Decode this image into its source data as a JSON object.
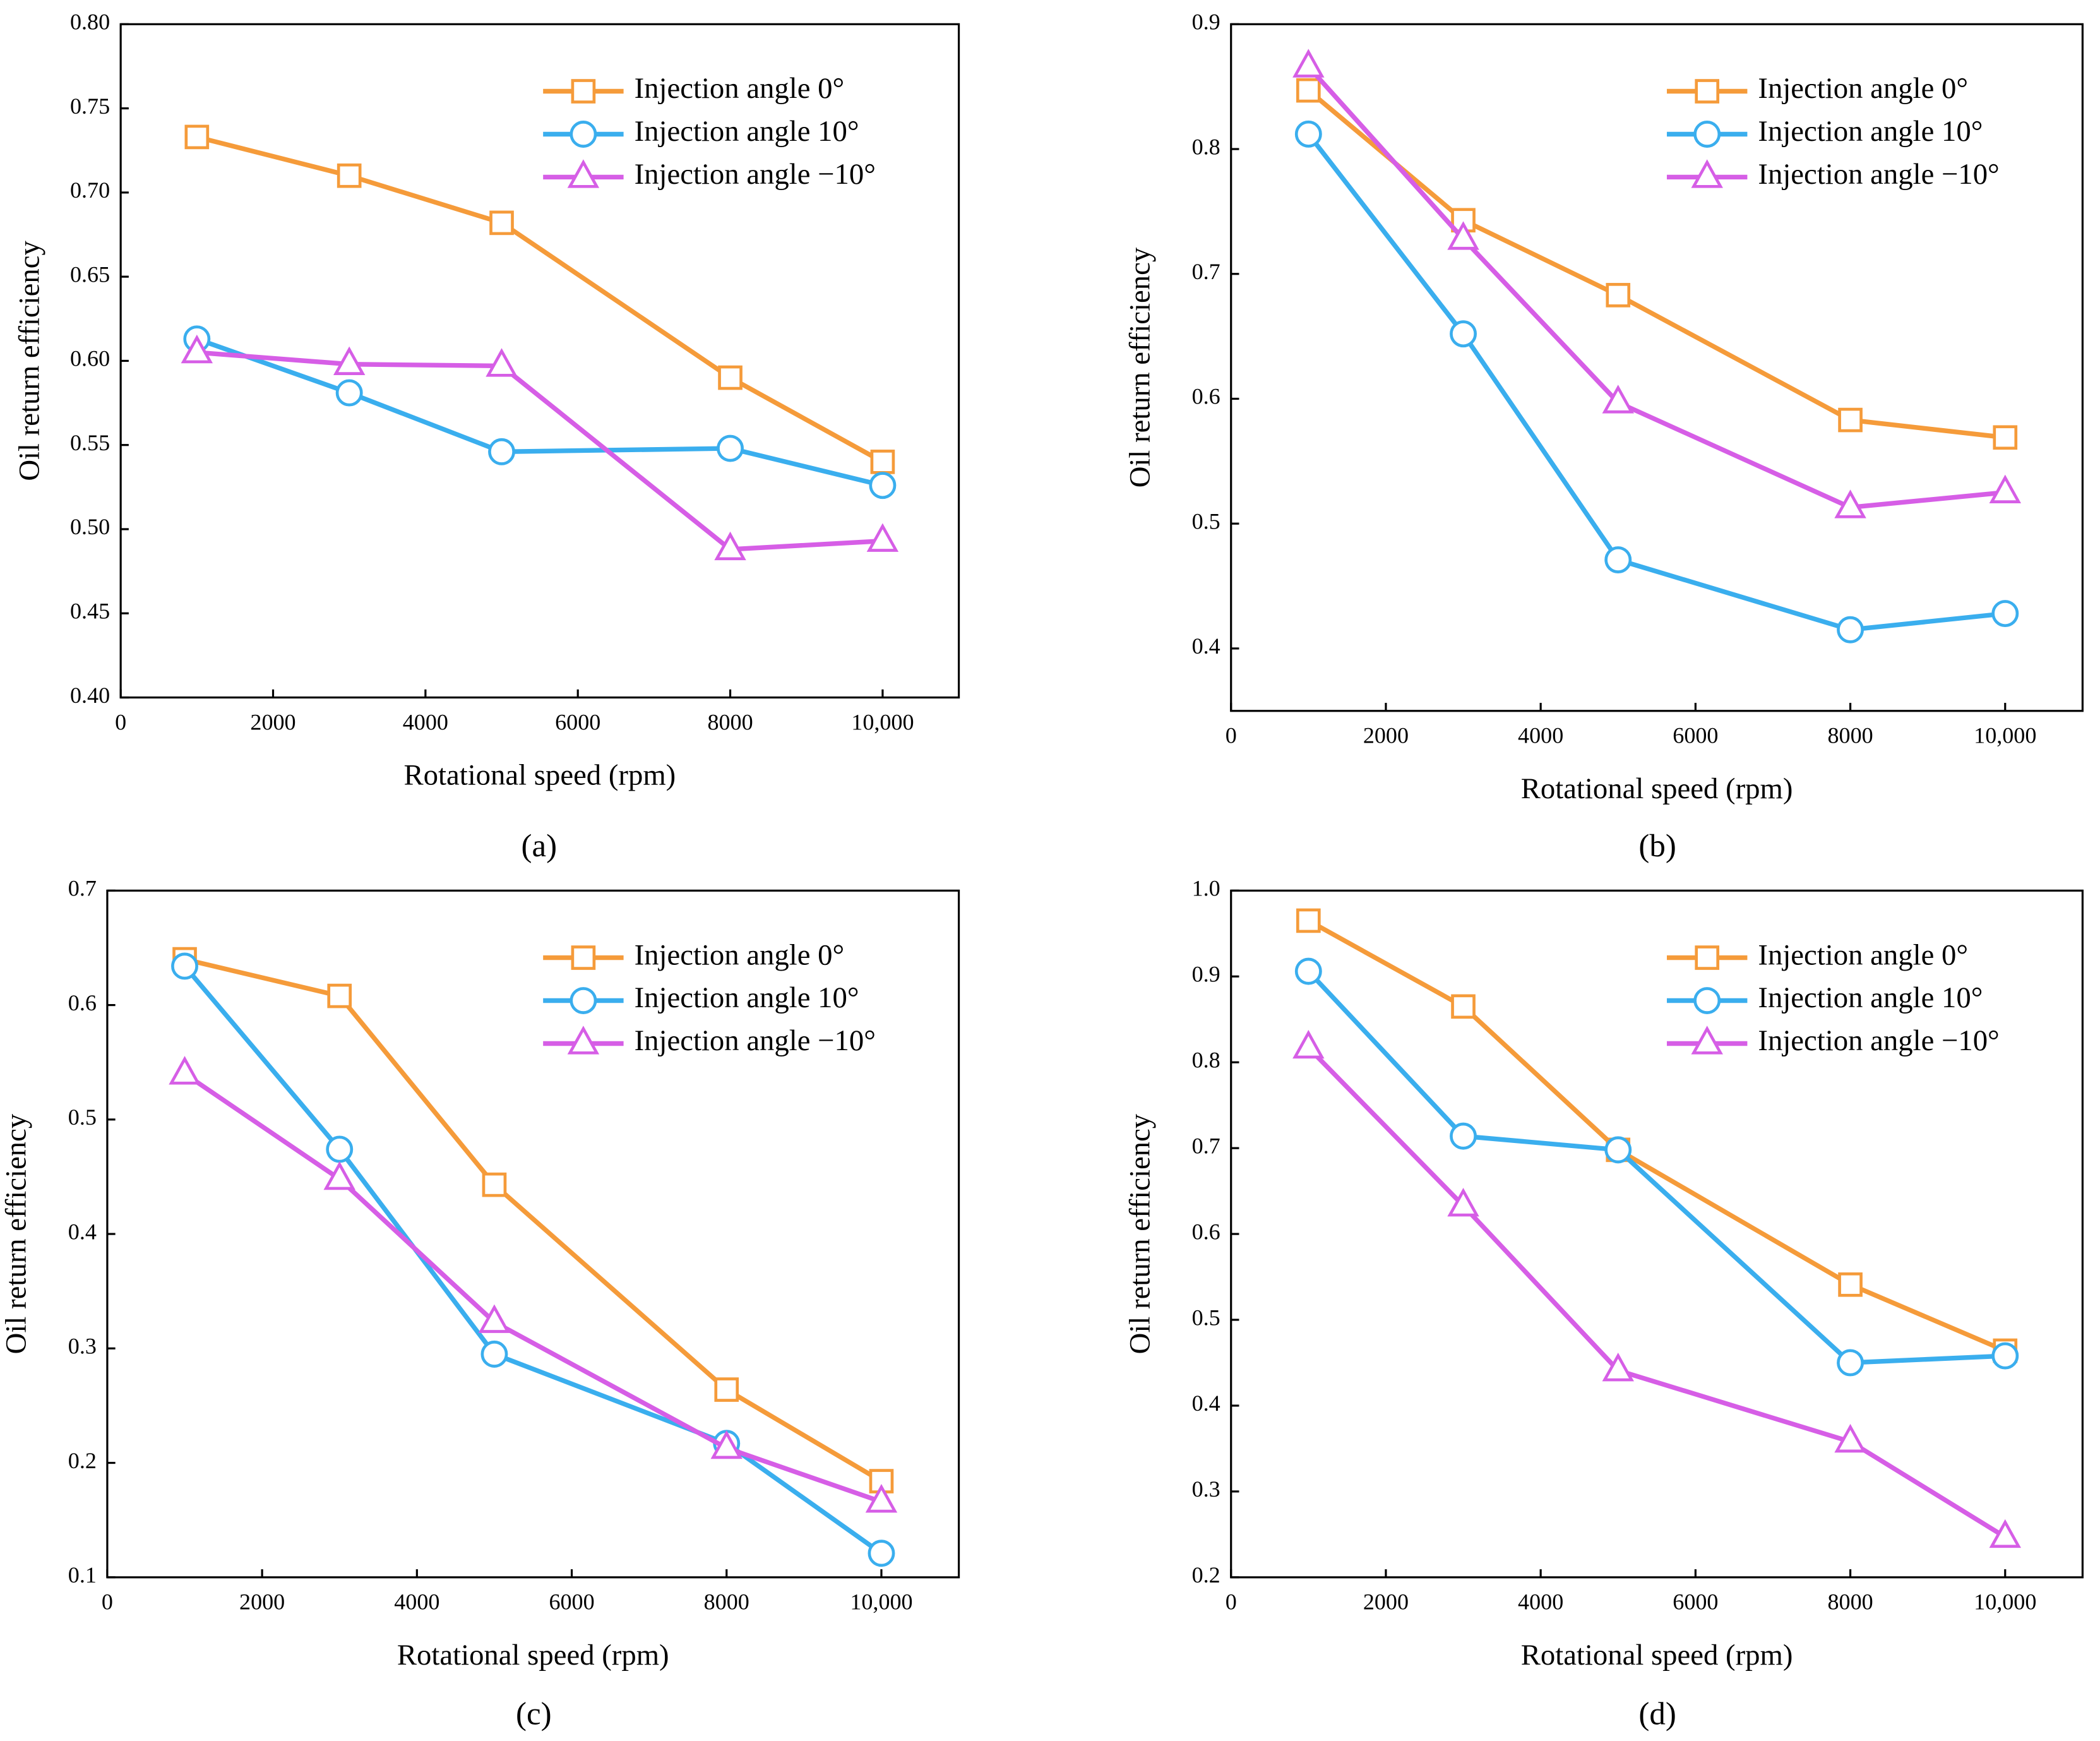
{
  "chart_data": [
    {
      "type": "line",
      "panel_label": "(a)",
      "xlabel": "Rotational speed (rpm)",
      "ylabel": "Oil return efficiency",
      "x": [
        1000,
        3000,
        5000,
        8000,
        10000
      ],
      "xlim": [
        0,
        11000
      ],
      "xticks": [
        0,
        2000,
        4000,
        6000,
        8000,
        {
          "value": 10000,
          "label": "10,000"
        }
      ],
      "ylim": [
        0.4,
        0.8
      ],
      "yticks": [
        {
          "value": 0.4,
          "label": "0.40"
        },
        {
          "value": 0.45,
          "label": "0.45"
        },
        {
          "value": 0.5,
          "label": "0.50"
        },
        {
          "value": 0.55,
          "label": "0.55"
        },
        {
          "value": 0.6,
          "label": "0.60"
        },
        {
          "value": 0.65,
          "label": "0.65"
        },
        {
          "value": 0.7,
          "label": "0.70"
        },
        {
          "value": 0.75,
          "label": "0.75"
        },
        {
          "value": 0.8,
          "label": "0.80"
        }
      ],
      "legend": "upper right",
      "series": [
        {
          "name": "Injection angle 0°",
          "color": "#f59b3a",
          "marker": "square",
          "values": [
            0.733,
            0.71,
            0.682,
            0.59,
            0.54
          ]
        },
        {
          "name": "Injection angle 10°",
          "color": "#3aaeee",
          "marker": "circle",
          "values": [
            0.613,
            0.581,
            0.546,
            0.548,
            0.526
          ]
        },
        {
          "name": "Injection angle −10°",
          "color": "#d65ee6",
          "marker": "triangle",
          "values": [
            0.605,
            0.598,
            0.597,
            0.488,
            0.493
          ]
        }
      ]
    },
    {
      "type": "line",
      "panel_label": "(b)",
      "xlabel": "Rotational speed (rpm)",
      "ylabel": "Oil return efficiency",
      "x": [
        1000,
        3000,
        5000,
        8000,
        10000
      ],
      "xlim": [
        0,
        11000
      ],
      "xticks": [
        0,
        2000,
        4000,
        6000,
        8000,
        {
          "value": 10000,
          "label": "10,000"
        }
      ],
      "ylim": [
        0.35,
        0.9
      ],
      "yticks": [
        0.4,
        0.5,
        0.6,
        0.7,
        0.8,
        0.9
      ],
      "legend": "upper right",
      "series": [
        {
          "name": "Injection angle 0°",
          "color": "#f59b3a",
          "marker": "square",
          "values": [
            0.847,
            0.743,
            0.683,
            0.583,
            0.569
          ]
        },
        {
          "name": "Injection angle 10°",
          "color": "#3aaeee",
          "marker": "circle",
          "values": [
            0.812,
            0.652,
            0.471,
            0.415,
            0.428
          ]
        },
        {
          "name": "Injection angle −10°",
          "color": "#d65ee6",
          "marker": "triangle",
          "values": [
            0.866,
            0.728,
            0.597,
            0.513,
            0.525
          ]
        }
      ]
    },
    {
      "type": "line",
      "panel_label": "(c)",
      "xlabel": "Rotational speed (rpm)",
      "ylabel": "Oil return efficiency",
      "x": [
        1000,
        3000,
        5000,
        8000,
        10000
      ],
      "xlim": [
        0,
        11000
      ],
      "xticks": [
        0,
        2000,
        4000,
        6000,
        8000,
        {
          "value": 10000,
          "label": "10,000"
        }
      ],
      "ylim": [
        0.1,
        0.7
      ],
      "yticks": [
        0.1,
        0.2,
        0.3,
        0.4,
        0.5,
        0.6,
        0.7
      ],
      "legend": "upper right",
      "series": [
        {
          "name": "Injection angle 0°",
          "color": "#f59b3a",
          "marker": "square",
          "values": [
            0.64,
            0.608,
            0.443,
            0.264,
            0.184
          ]
        },
        {
          "name": "Injection angle 10°",
          "color": "#3aaeee",
          "marker": "circle",
          "values": [
            0.634,
            0.474,
            0.295,
            0.217,
            0.121
          ]
        },
        {
          "name": "Injection angle −10°",
          "color": "#d65ee6",
          "marker": "triangle",
          "values": [
            0.54,
            0.448,
            0.323,
            0.213,
            0.166
          ]
        }
      ]
    },
    {
      "type": "line",
      "panel_label": "(d)",
      "xlabel": "Rotational speed (rpm)",
      "ylabel": "Oil return efficiency",
      "x": [
        1000,
        3000,
        5000,
        8000,
        10000
      ],
      "xlim": [
        0,
        11000
      ],
      "xticks": [
        0,
        2000,
        4000,
        6000,
        8000,
        {
          "value": 10000,
          "label": "10,000"
        }
      ],
      "ylim": [
        0.2,
        1.0
      ],
      "yticks": [
        0.2,
        0.3,
        0.4,
        0.5,
        0.6,
        0.7,
        0.8,
        0.9,
        {
          "value": 1.0,
          "label": "1.0"
        }
      ],
      "legend": "upper right",
      "series": [
        {
          "name": "Injection angle 0°",
          "color": "#f59b3a",
          "marker": "square",
          "values": [
            0.965,
            0.865,
            0.698,
            0.541,
            0.464
          ]
        },
        {
          "name": "Injection angle 10°",
          "color": "#3aaeee",
          "marker": "circle",
          "values": [
            0.906,
            0.714,
            0.698,
            0.45,
            0.458
          ]
        },
        {
          "name": "Injection angle −10°",
          "color": "#d65ee6",
          "marker": "triangle",
          "values": [
            0.817,
            0.633,
            0.441,
            0.358,
            0.247
          ]
        }
      ]
    }
  ]
}
